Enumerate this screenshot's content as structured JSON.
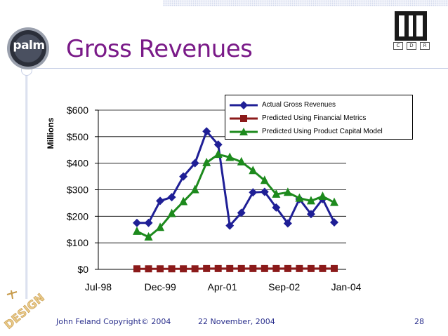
{
  "slide": {
    "title": "Gross Revenues",
    "footer_left": "John Feland Copyright© 2004",
    "footer_center": "22 November, 2004",
    "page_number": "28"
  },
  "logos": {
    "palm_text": "palm",
    "cdr_letters": [
      "C",
      "D",
      "R"
    ],
    "design_text": "DESIGN"
  },
  "chart_data": {
    "type": "line",
    "ylabel": "Millions",
    "ylim": [
      0,
      600
    ],
    "xlim": [
      "Jul-98",
      "Jan-04"
    ],
    "y_ticks": [
      "$0",
      "$100",
      "$200",
      "$300",
      "$400",
      "$500",
      "$600"
    ],
    "x_ticks": [
      "Jul-98",
      "Dec-99",
      "Apr-01",
      "Sep-02",
      "Jan-04"
    ],
    "grid": true,
    "legend_position": "top-right",
    "series": [
      {
        "name": "Actual Gross Revenues",
        "color": "#1f1f96",
        "marker": "diamond",
        "values": [
          175,
          175,
          258,
          272,
          350,
          400,
          520,
          470,
          165,
          213,
          290,
          292,
          233,
          173,
          265,
          208,
          265,
          177
        ]
      },
      {
        "name": "Predicted Using Financial Metrics",
        "color": "#8b1a1a",
        "marker": "square",
        "values": [
          2,
          2,
          2,
          2,
          2,
          2,
          3,
          3,
          3,
          3,
          3,
          3,
          3,
          3,
          3,
          3,
          3,
          3
        ]
      },
      {
        "name": "Predicted Using Product Capital Model",
        "color": "#1d8a1d",
        "marker": "triangle",
        "values": [
          143,
          122,
          158,
          210,
          255,
          300,
          402,
          433,
          422,
          405,
          372,
          335,
          283,
          290,
          268,
          258,
          275,
          252
        ]
      }
    ]
  }
}
